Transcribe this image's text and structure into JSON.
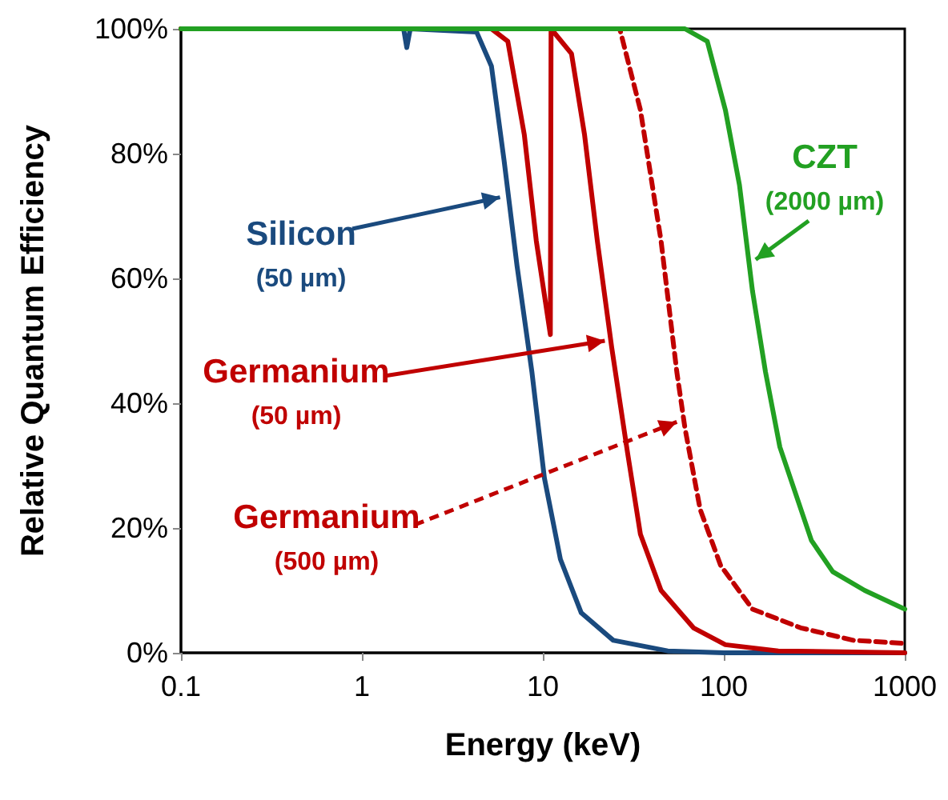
{
  "chart_data": {
    "type": "line",
    "xlabel": "Energy (keV)",
    "ylabel": "Relative Quantum Efficiency",
    "log": "x",
    "grid": false,
    "marker": "none",
    "xlim": [
      0.1,
      1000
    ],
    "xticks": [
      0.1,
      1,
      10,
      100,
      1000
    ],
    "ylim": [
      0,
      100
    ],
    "yticks": [
      {
        "value": 0,
        "label": "0%"
      },
      {
        "value": 20,
        "label": "20%"
      },
      {
        "value": 40,
        "label": "40%"
      },
      {
        "value": 60,
        "label": "60%"
      },
      {
        "value": 80,
        "label": "80%"
      },
      {
        "value": 100,
        "label": "100%"
      }
    ],
    "series": [
      {
        "color": "#1a4a7e",
        "line_style": "solid",
        "x": [
          0.1,
          1.7,
          1.77,
          1.85,
          4.3,
          5.2,
          6.1,
          7.2,
          8.7,
          10.2,
          12.5,
          16.3,
          24.5,
          49,
          100,
          1000
        ],
        "values": [
          100,
          100,
          97,
          100,
          99.5,
          94,
          79,
          62,
          45,
          28,
          15,
          6.4,
          2,
          0.3,
          0,
          0
        ]
      },
      {
        "color": "#c00000",
        "line_style": "solid",
        "x": [
          0.1,
          5.2,
          6.4,
          7.9,
          9.2,
          11,
          11.1,
          14.4,
          17,
          20,
          24,
          29.4,
          34.6,
          45,
          68,
          102,
          200,
          1000
        ],
        "values": [
          100,
          100,
          98,
          83,
          66,
          51,
          100,
          96,
          83,
          66,
          49,
          32,
          19,
          10,
          4,
          1.3,
          0.3,
          0
        ]
      },
      {
        "color": "#c00000",
        "line_style": "dashed",
        "x": [
          0.1,
          26.6,
          34.6,
          45,
          55,
          61,
          74,
          96,
          144,
          266,
          521,
          1000
        ],
        "values": [
          100,
          100,
          87,
          66,
          45,
          36,
          23,
          14,
          7,
          4,
          2,
          1.5
        ]
      },
      {
        "color": "#22a022",
        "line_style": "solid",
        "x": [
          0.1,
          61,
          81,
          102,
          122,
          144,
          170,
          204,
          305,
          400,
          600,
          1000
        ],
        "values": [
          100,
          100,
          98,
          87,
          75,
          58,
          45,
          33,
          18,
          13,
          10,
          7
        ]
      }
    ],
    "annotations": [
      {
        "text": "Silicon\n(50 µm)",
        "x": 5.8,
        "y": 73
      },
      {
        "text": "Germanium\n(50 µm)",
        "x": 22,
        "y": 50
      },
      {
        "text": "Germanium\n(500 µm)",
        "x": 55,
        "y": 37
      },
      {
        "text": "CZT\n(2000 µm)",
        "x": 150,
        "y": 63
      }
    ]
  }
}
